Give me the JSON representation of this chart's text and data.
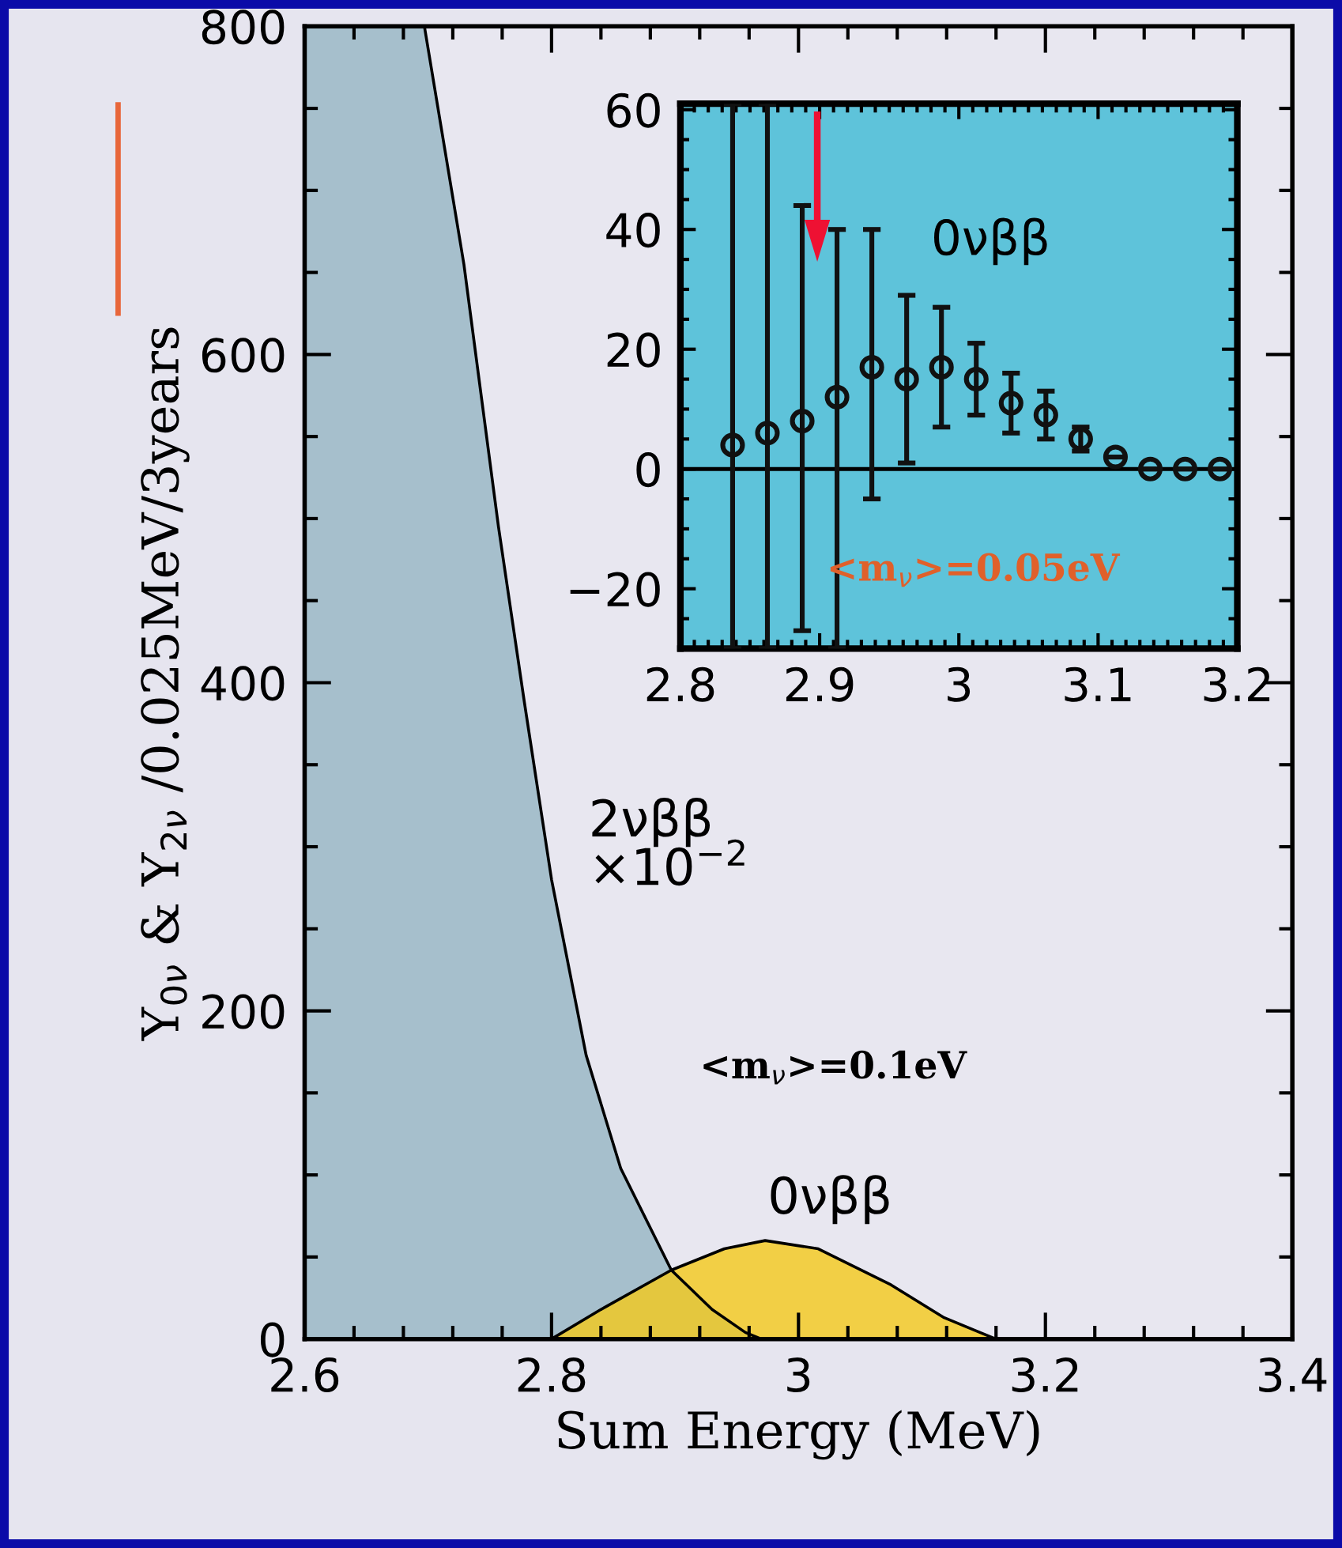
{
  "chart_data": [
    {
      "type": "area",
      "xlabel": "Sum Energy (MeV)",
      "ylabel": "Y$_{0ν}$ & Y$_{2ν}$ /0.025MeV/3years",
      "xlim": [
        2.6,
        3.4
      ],
      "ylim": [
        0,
        800
      ],
      "xticks": [
        2.6,
        2.8,
        3,
        3.2,
        3.4
      ],
      "yticks": [
        0,
        200,
        400,
        600,
        800
      ],
      "grid": false,
      "legend": false,
      "series": [
        {
          "name": "2νββ\n×10$^{−2}$",
          "color": "#a6bfcc",
          "x": [
            2.6,
            2.697,
            2.729,
            2.757,
            2.778,
            2.8,
            2.828,
            2.856,
            2.897,
            2.93,
            2.957,
            2.97
          ],
          "values": [
            800,
            800,
            655,
            495,
            388,
            280,
            173,
            104,
            42,
            18,
            4,
            0
          ]
        },
        {
          "name": "0νββ",
          "color": "#f4c91a",
          "x": [
            2.8,
            2.84,
            2.897,
            2.94,
            2.973,
            3.016,
            3.075,
            3.118,
            3.147,
            3.16
          ],
          "values": [
            0,
            18,
            42,
            55,
            60,
            55,
            33,
            13,
            4,
            0
          ]
        }
      ],
      "annotations": [
        "<m$_{ν}$>=0.1eV"
      ]
    },
    {
      "type": "scatter",
      "xlim": [
        2.8,
        3.2
      ],
      "ylim": [
        -30,
        61
      ],
      "xticks": [
        2.8,
        2.9,
        3,
        3.1,
        3.2
      ],
      "yticks": [
        {
          "value": -20,
          "label": "−20"
        },
        0,
        20,
        40,
        60
      ],
      "grid": false,
      "legend": false,
      "marker": "circle",
      "ref_lines": [
        {
          "axis": "y",
          "value": 0,
          "color": "#000000"
        }
      ],
      "series": [
        {
          "color": "#111111",
          "x": [
            2.8375,
            2.8625,
            2.8875,
            2.9125,
            2.9375,
            2.9625,
            2.9875,
            3.0125,
            3.0375,
            3.0625,
            3.0875,
            3.1125,
            3.1375,
            3.1625,
            3.1875
          ],
          "values": [
            4,
            6,
            8,
            12,
            17,
            15,
            17,
            15,
            11,
            9,
            5,
            2,
            0,
            0,
            0
          ],
          "errors": [
            [
              -30,
              61
            ],
            [
              -30,
              61
            ],
            [
              -27,
              44
            ],
            [
              -30,
              40
            ],
            [
              -5,
              40
            ],
            [
              1,
              29
            ],
            [
              7,
              27
            ],
            [
              9,
              21
            ],
            [
              6,
              16
            ],
            [
              5,
              13
            ],
            [
              3,
              7
            ],
            null,
            null,
            null,
            null
          ]
        }
      ],
      "annotations": [
        "0νββ",
        "<m$_{ν}$>=0.05eV"
      ]
    }
  ]
}
